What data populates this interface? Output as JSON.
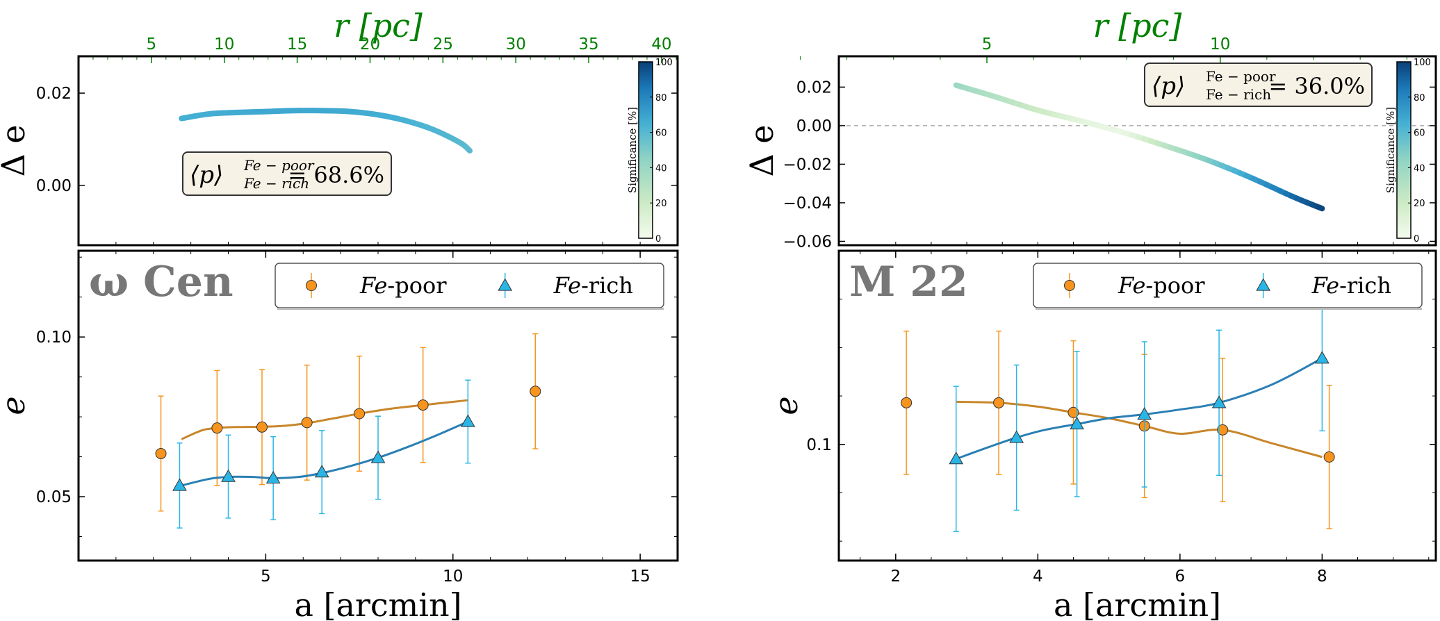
{
  "colors": {
    "fe_poor": "#f7941d",
    "fe_rich": "#29b6e6",
    "fe_poor_line": "#c8862a",
    "fe_rich_line": "#2a7fb4",
    "top_axis": "#008000",
    "annotation_bg": "#f7f2e6",
    "cmap_low": "#f4fbef",
    "cmap_mid": "#5bbfd4",
    "cmap_high": "#0a4f93"
  },
  "chart_data": [
    {
      "panel": "omega-cen-delta",
      "type": "line",
      "ylabel": "Δ e",
      "xlim": [
        0,
        16
      ],
      "ylim": [
        -0.013,
        0.028
      ],
      "yticks": [
        0.0,
        0.02
      ],
      "ytick_labels": [
        "0.00",
        "0.02"
      ],
      "top_axis": {
        "label": "r [pc]",
        "ticks": [
          5,
          10,
          15,
          20,
          25,
          30,
          35,
          40
        ],
        "tick_labels": [
          "5",
          "10",
          "15",
          "20",
          "25",
          "30",
          "35",
          "40"
        ],
        "arcmin_per_unit": 0.3893
      },
      "x": [
        2.75,
        3.5,
        4.25,
        5.0,
        5.75,
        6.5,
        7.25,
        8.0,
        8.75,
        9.5,
        10.2,
        10.45
      ],
      "y": [
        0.0145,
        0.0155,
        0.0158,
        0.016,
        0.0162,
        0.0162,
        0.016,
        0.0153,
        0.014,
        0.012,
        0.0092,
        0.0075
      ],
      "significance": [
        65,
        66,
        67,
        68,
        68,
        68,
        67,
        66,
        64,
        62,
        60,
        59
      ],
      "colorbar": {
        "label": "Significance [%]",
        "ticks": [
          "0",
          "20",
          "40",
          "60",
          "80",
          "100"
        ]
      },
      "annotation": {
        "text_prefix": "⟨p⟩",
        "sup": "Fe − poor",
        "sub": "Fe − rich",
        "value": "= 68.6%"
      }
    },
    {
      "panel": "omega-cen-e",
      "type": "scatter",
      "cluster_label": "ω Cen",
      "xlabel": "a [arcmin]",
      "ylabel": "e",
      "xlim": [
        0,
        16
      ],
      "ylim": [
        0.03,
        0.127
      ],
      "xticks": [
        5,
        10,
        15
      ],
      "xtick_labels": [
        "5",
        "10",
        "15"
      ],
      "yticks": [
        0.05,
        0.1
      ],
      "ytick_labels": [
        "0.05",
        "0.10"
      ],
      "series": [
        {
          "name": "Fe-poor",
          "legend_italic": "Fe",
          "legend_rest": "-poor",
          "marker": "circle",
          "x": [
            2.2,
            3.7,
            4.9,
            6.1,
            7.5,
            9.2,
            12.2
          ],
          "y": [
            0.0635,
            0.0715,
            0.0718,
            0.0732,
            0.076,
            0.0787,
            0.083
          ],
          "err": [
            0.018,
            0.018,
            0.018,
            0.018,
            0.018,
            0.018,
            0.018
          ],
          "curve_x": [
            2.75,
            3.3,
            3.7,
            4.2,
            4.9,
            5.5,
            6.1,
            6.8,
            7.5,
            8.3,
            9.2,
            10.4
          ],
          "curve_y": [
            0.068,
            0.0708,
            0.0715,
            0.0718,
            0.0719,
            0.0722,
            0.073,
            0.0745,
            0.076,
            0.0775,
            0.0787,
            0.0802
          ]
        },
        {
          "name": "Fe-rich",
          "legend_italic": "Fe",
          "legend_rest": "-rich",
          "marker": "triangle",
          "x": [
            2.7,
            4.0,
            5.2,
            6.5,
            8.0,
            10.4
          ],
          "y": [
            0.0535,
            0.0563,
            0.0558,
            0.0577,
            0.0622,
            0.0735
          ],
          "err": [
            0.0133,
            0.013,
            0.013,
            0.013,
            0.013,
            0.013
          ],
          "curve_x": [
            2.75,
            3.5,
            4.0,
            4.6,
            5.2,
            5.9,
            6.5,
            7.2,
            8.0,
            8.8,
            9.6,
            10.4
          ],
          "curve_y": [
            0.0535,
            0.0556,
            0.0562,
            0.0562,
            0.0558,
            0.0562,
            0.0574,
            0.0594,
            0.0622,
            0.0656,
            0.0694,
            0.0735
          ]
        }
      ]
    },
    {
      "panel": "m22-delta",
      "type": "line",
      "ylabel": "Δ e",
      "xlim": [
        1.2,
        9.6
      ],
      "ylim": [
        -0.062,
        0.036
      ],
      "yticks": [
        -0.06,
        -0.04,
        -0.02,
        0.0,
        0.02
      ],
      "ytick_labels": [
        "−0.06",
        "−0.04",
        "−0.02",
        "0.00",
        "0.02"
      ],
      "reference_line": 0.0,
      "top_axis": {
        "label": "r [pc]",
        "ticks": [
          5,
          10
        ],
        "tick_labels": [
          "5",
          "10"
        ],
        "arcmin_per_unit": 0.6566
      },
      "x": [
        2.85,
        3.4,
        4.0,
        4.6,
        5.2,
        5.8,
        6.4,
        7.0,
        7.6,
        8.0
      ],
      "y": [
        0.021,
        0.015,
        0.008,
        0.0025,
        -0.0035,
        -0.0105,
        -0.018,
        -0.027,
        -0.037,
        -0.043
      ],
      "significance": [
        40,
        30,
        20,
        8,
        5,
        28,
        50,
        72,
        90,
        100
      ],
      "colorbar": {
        "label": "Significance [%]",
        "ticks": [
          "0",
          "20",
          "40",
          "60",
          "80",
          "100"
        ]
      },
      "annotation": {
        "text_prefix": "⟨p⟩",
        "sup": "Fe − poor",
        "sub": "Fe − rich",
        "value": "= 36.0%"
      }
    },
    {
      "panel": "m22-e",
      "type": "scatter",
      "cluster_label": "M 22",
      "xlabel": "a [arcmin]",
      "ylabel": "e",
      "xlim": [
        1.2,
        9.6
      ],
      "ylim": [
        0.04,
        0.2
      ],
      "xticks": [
        2,
        4,
        6,
        8
      ],
      "xtick_labels": [
        "2",
        "4",
        "6",
        "8"
      ],
      "yticks": [
        0.1
      ],
      "ytick_labels": [
        "0.1"
      ],
      "series": [
        {
          "name": "Fe-poor",
          "legend_italic": "Fe",
          "legend_rest": "-poor",
          "marker": "circle",
          "x": [
            2.15,
            3.45,
            4.5,
            5.5,
            6.6,
            8.1
          ],
          "y": [
            0.1215,
            0.1215,
            0.1165,
            0.1095,
            0.1075,
            0.0935
          ],
          "err": [
            0.037,
            0.037,
            0.037,
            0.037,
            0.037,
            0.037
          ],
          "curve_x": [
            2.85,
            3.45,
            4.0,
            4.5,
            5.0,
            5.5,
            6.0,
            6.6,
            7.3,
            8.0
          ],
          "curve_y": [
            0.122,
            0.1215,
            0.1195,
            0.1165,
            0.1135,
            0.1095,
            0.1055,
            0.1075,
            0.1005,
            0.0935
          ]
        },
        {
          "name": "Fe-rich",
          "legend_italic": "Fe",
          "legend_rest": "-rich",
          "marker": "triangle",
          "x": [
            2.85,
            3.7,
            4.55,
            5.5,
            6.55,
            8.0
          ],
          "y": [
            0.0925,
            0.1035,
            0.1105,
            0.1155,
            0.1215,
            0.1445
          ],
          "err": [
            0.0375,
            0.0375,
            0.0375,
            0.0375,
            0.0375,
            0.0375
          ],
          "curve_x": [
            2.85,
            3.3,
            3.7,
            4.1,
            4.55,
            5.0,
            5.5,
            6.0,
            6.55,
            7.3,
            8.0
          ],
          "curve_y": [
            0.0925,
            0.0985,
            0.1035,
            0.1075,
            0.1105,
            0.1135,
            0.1155,
            0.118,
            0.1215,
            0.131,
            0.1445
          ]
        }
      ]
    }
  ]
}
